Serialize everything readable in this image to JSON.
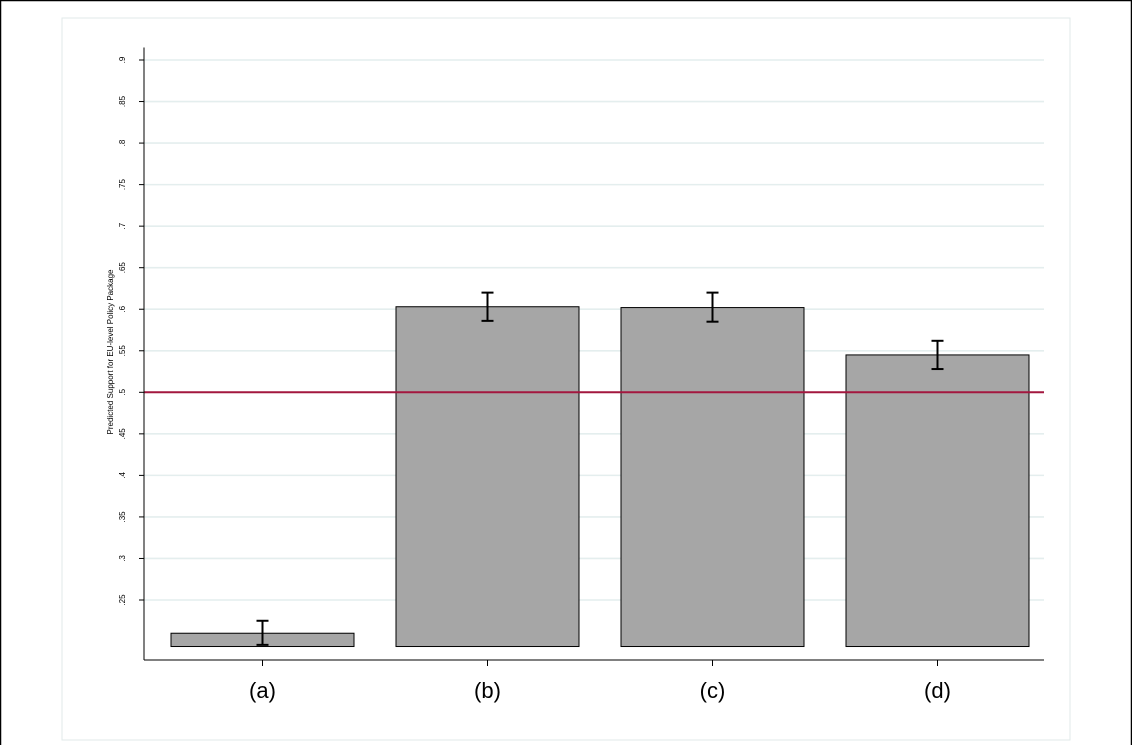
{
  "chart_data": {
    "type": "bar",
    "title": "",
    "xlabel": "",
    "ylabel": "Predicted Support for EU-level Policy Package",
    "categories": [
      "(a)",
      "(b)",
      "(c)",
      "(d)"
    ],
    "values": [
      0.21,
      0.603,
      0.602,
      0.545
    ],
    "error_bars": [
      {
        "low": 0.196,
        "high": 0.225
      },
      {
        "low": 0.586,
        "high": 0.62
      },
      {
        "low": 0.585,
        "high": 0.62
      },
      {
        "low": 0.528,
        "high": 0.562
      }
    ],
    "bar_base": 0.194,
    "ylim": [
      0.18,
      0.915
    ],
    "yticks": [
      0.25,
      0.3,
      0.35,
      0.4,
      0.45,
      0.5,
      0.55,
      0.6,
      0.65,
      0.7,
      0.75,
      0.8,
      0.85,
      0.9
    ],
    "ytick_labels": [
      ".25",
      ".3",
      ".35",
      ".4",
      ".45",
      ".5",
      ".55",
      ".6",
      ".65",
      ".7",
      ".75",
      ".8",
      ".85",
      ".9"
    ],
    "reference_line": 0.5,
    "grid": true,
    "colors": {
      "bar_fill": "#a6a6a6",
      "bar_edge": "#000000",
      "reference_line": "#a3173f",
      "grid": "#e4eeee",
      "plot_border": "#e0eaea"
    }
  }
}
